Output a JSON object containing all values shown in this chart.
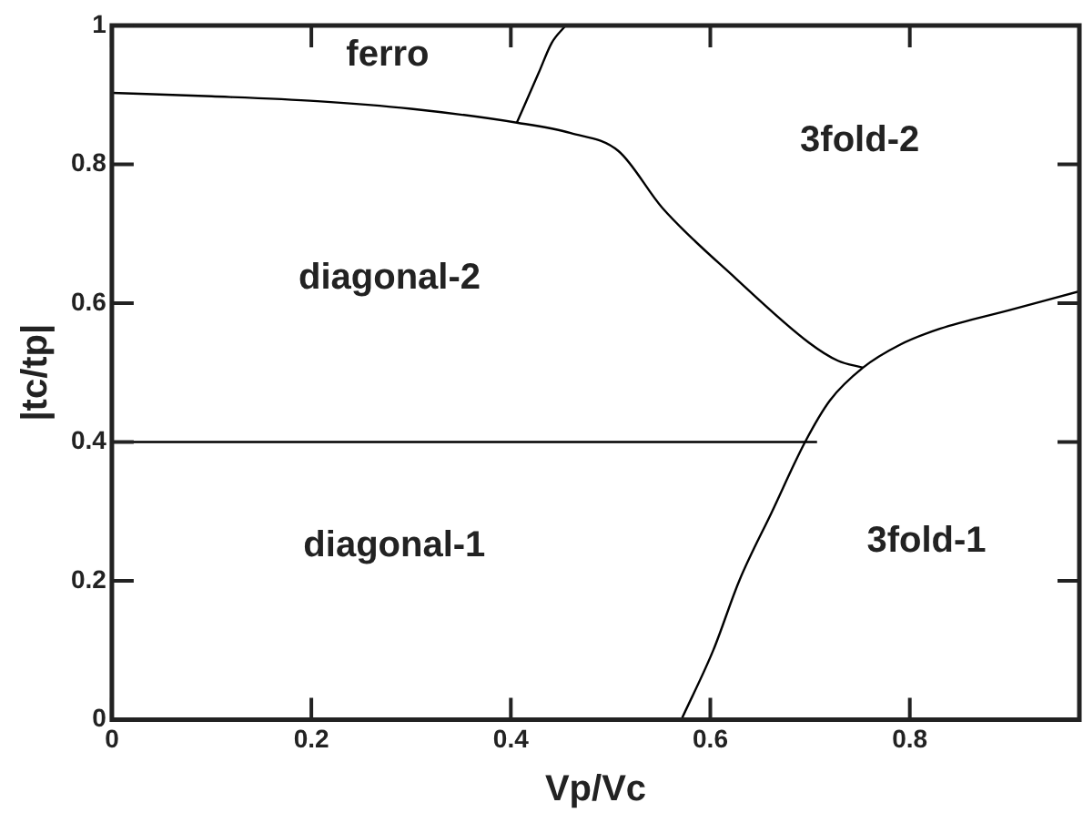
{
  "chart_data": {
    "type": "line",
    "xlabel": "Vp/Vc",
    "ylabel": "|tc/tp|",
    "xlim": [
      0,
      0.97
    ],
    "ylim": [
      0,
      1
    ],
    "xticks": [
      0,
      0.2,
      0.4,
      0.6,
      0.8
    ],
    "yticks": [
      0,
      0.2,
      0.4,
      0.6,
      0.8,
      1
    ],
    "grid": false,
    "legend": false,
    "marker": "none",
    "line_style": "solid",
    "series": [
      {
        "color": "#000000",
        "x": [
          0,
          0.707
        ],
        "values": [
          0.4,
          0.4
        ]
      },
      {
        "color": "#000000",
        "x": [
          0.571,
          0.603,
          0.629,
          0.662,
          0.695,
          0.72,
          0.753,
          0.79,
          0.83,
          0.9,
          0.97
        ],
        "values": [
          0,
          0.1,
          0.2,
          0.3,
          0.4,
          0.46,
          0.507,
          0.54,
          0.563,
          0.59,
          0.617
        ]
      },
      {
        "color": "#000000",
        "x": [
          0,
          0.1,
          0.206,
          0.3,
          0.406,
          0.46,
          0.508,
          0.552,
          0.626,
          0.699,
          0.728,
          0.753
        ],
        "values": [
          0.903,
          0.898,
          0.891,
          0.88,
          0.86,
          0.845,
          0.819,
          0.737,
          0.635,
          0.543,
          0.517,
          0.507
        ]
      },
      {
        "color": "#000000",
        "x": [
          0.406,
          0.428,
          0.441,
          0.455
        ],
        "values": [
          0.86,
          0.932,
          0.975,
          1
        ]
      }
    ],
    "annotations": [
      "ferro",
      "diagonal-2",
      "3fold-2",
      "diagonal-1",
      "3fold-1"
    ]
  }
}
